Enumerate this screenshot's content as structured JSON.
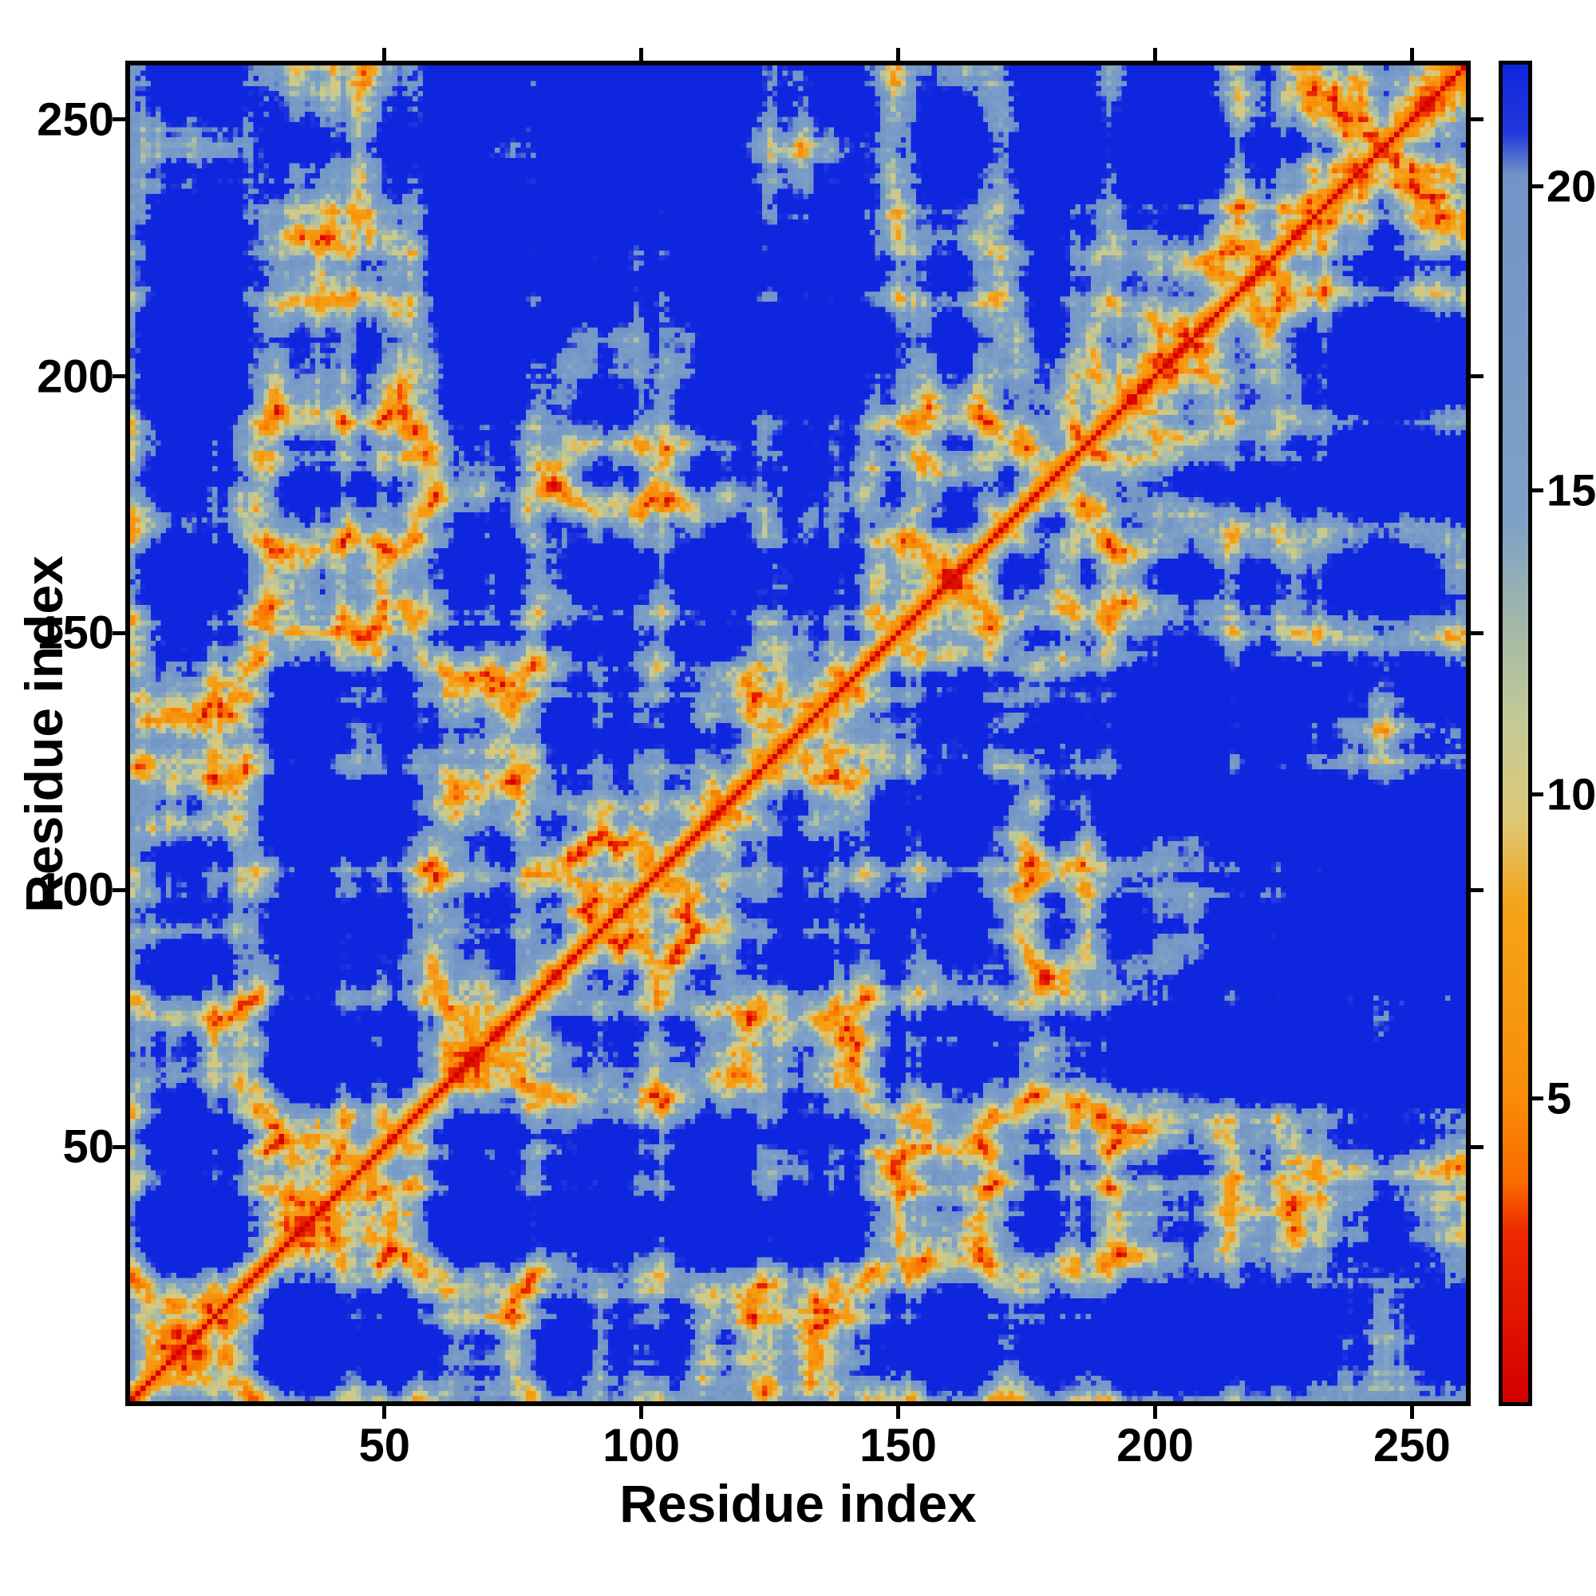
{
  "figure": {
    "background": "#ffffff",
    "frame_color": "#000000",
    "text_color": "#000000"
  },
  "chart_data": {
    "type": "heatmap",
    "title": "",
    "xlabel": "Residue index",
    "ylabel": "Residue index",
    "x_range": [
      1,
      260
    ],
    "y_range": [
      1,
      260
    ],
    "x_ticks": [
      50,
      100,
      150,
      200,
      250
    ],
    "y_ticks": [
      50,
      100,
      150,
      200,
      250
    ],
    "grid": false,
    "legend_position": "none",
    "colorbar": {
      "position": "right",
      "ticks": [
        5,
        10,
        15,
        20
      ],
      "range": [
        0,
        22
      ],
      "label": ""
    },
    "colormap_stops": [
      [
        0.0,
        "#d40000"
      ],
      [
        2.8,
        "#ee2a00"
      ],
      [
        3.6,
        "#fa6a00"
      ],
      [
        5.0,
        "#f88d08"
      ],
      [
        8.2,
        "#f4a41a"
      ],
      [
        9.6,
        "#dcc878"
      ],
      [
        11.2,
        "#c3ca96"
      ],
      [
        12.8,
        "#a2b8a8"
      ],
      [
        14.5,
        "#7ea1c8"
      ],
      [
        20.2,
        "#7193c6"
      ],
      [
        20.9,
        "#2438dc"
      ],
      [
        22.0,
        "#0f26df"
      ]
    ],
    "description": "Symmetric pairwise residue-residue distance map for a 260-residue protein. Red diagonal = zero/near-zero distance, orange band = sequence neighbors (~4-8), sage/green halo ~9-12, steel blue ~13-20, dark blue = distances clipped above ~21. Off-diagonal orange speckle clusters mark tertiary contacts; large dark-blue corner blocks mark distal regions.",
    "generation": {
      "n": 260,
      "seed": 42,
      "bond": 3.8,
      "persistence": 0.72,
      "radius": 18.5,
      "wall_softness": 0.2,
      "noise": 2.2
    }
  }
}
